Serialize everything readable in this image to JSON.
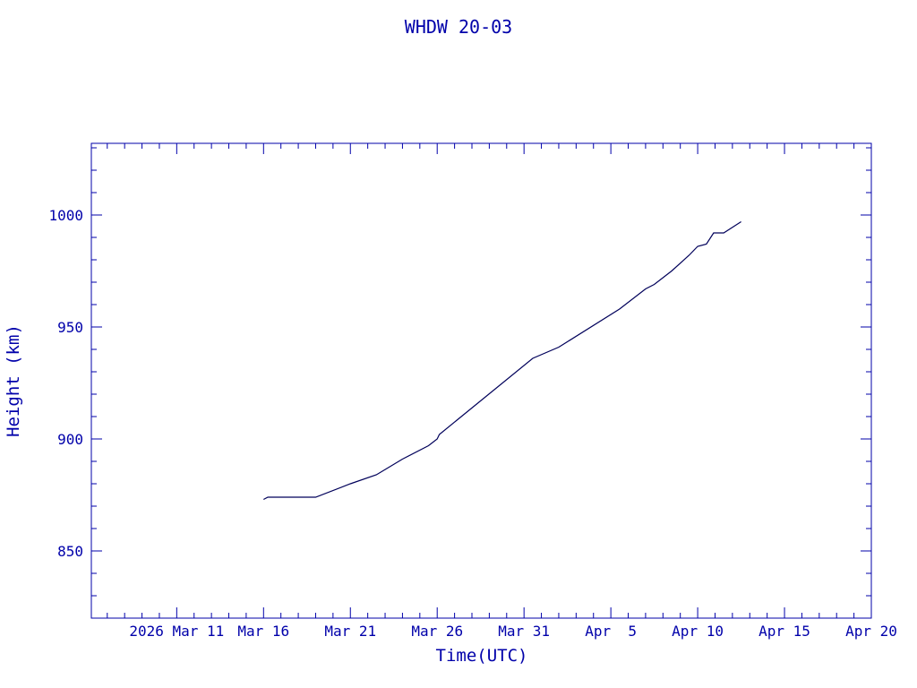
{
  "chart_data": {
    "type": "line",
    "title": "WHDW 20-03",
    "xlabel": "Time(UTC)",
    "ylabel": "Height (km)",
    "x_ticks": [
      {
        "date": "2026-03-11",
        "label": "2026 Mar 11"
      },
      {
        "date": "2026-03-16",
        "label": "Mar 16"
      },
      {
        "date": "2026-03-21",
        "label": "Mar 21"
      },
      {
        "date": "2026-03-26",
        "label": "Mar 26"
      },
      {
        "date": "2026-03-31",
        "label": "Mar 31"
      },
      {
        "date": "2026-04-05",
        "label": "Apr  5"
      },
      {
        "date": "2026-04-10",
        "label": "Apr 10"
      },
      {
        "date": "2026-04-15",
        "label": "Apr 15"
      },
      {
        "date": "2026-04-20",
        "label": "Apr 20"
      }
    ],
    "y_ticks": [
      850,
      900,
      950,
      1000
    ],
    "xlim": [
      "2026-03-06T02:00",
      "2026-04-20"
    ],
    "ylim": [
      820,
      1032
    ],
    "grid": false,
    "color": "#00005a",
    "axis_color": "#0000aa",
    "series": [
      {
        "x": [
          "2026-03-16T00:00",
          "2026-03-16T06:00",
          "2026-03-19T00:00",
          "2026-03-21T00:00",
          "2026-03-22T12:00",
          "2026-03-24T00:00",
          "2026-03-25T12:00",
          "2026-03-26T00:00",
          "2026-03-26T03:00",
          "2026-03-31T12:00",
          "2026-04-02T00:00",
          "2026-04-05T12:00",
          "2026-04-07T00:00",
          "2026-04-07T12:00",
          "2026-04-08T12:00",
          "2026-04-09T12:00",
          "2026-04-10T00:00",
          "2026-04-10T12:00",
          "2026-04-10T22:00",
          "2026-04-11T12:00",
          "2026-04-12T12:00"
        ],
        "y": [
          873,
          874,
          874,
          880,
          884,
          891,
          897,
          900,
          902,
          936,
          941,
          958,
          967,
          969,
          975,
          982,
          986,
          987,
          992,
          992,
          997
        ]
      }
    ]
  }
}
